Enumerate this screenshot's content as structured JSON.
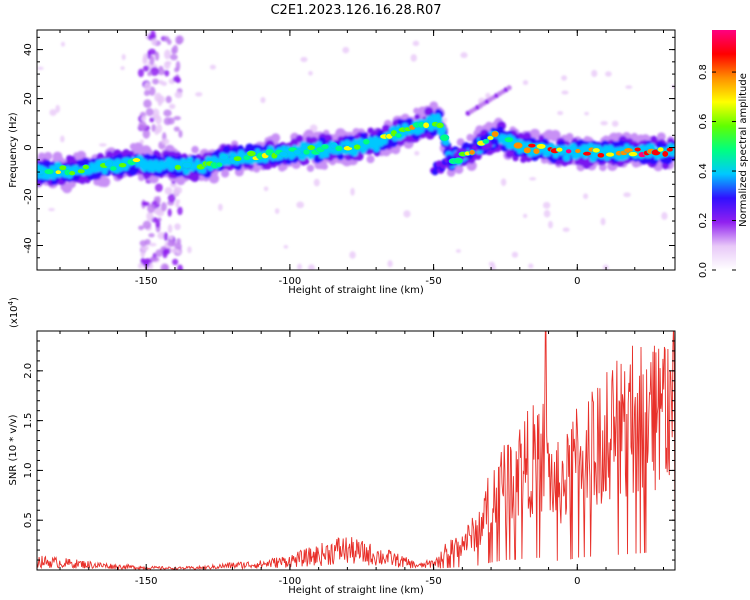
{
  "title": "C2E1.2023.126.16.28.R07",
  "chart_data": [
    {
      "type": "heatmap",
      "xlabel": "Height of straight line (km)",
      "ylabel": "Frequency (Hz)",
      "xlim": [
        -188,
        34
      ],
      "ylim": [
        -50,
        48
      ],
      "xticks": [
        -150,
        -100,
        -50,
        0
      ],
      "xtick_labels": [
        "-150",
        "-100",
        "-50",
        "0"
      ],
      "yticks": [
        -40,
        -20,
        0,
        20,
        40
      ],
      "ytick_labels": [
        "-40",
        "-20",
        "0",
        "20",
        "40"
      ],
      "colorbar": {
        "label": "Normalized spectral amplitude",
        "range": [
          0,
          0.97
        ],
        "ticks": [
          0.0,
          0.2,
          0.4,
          0.6,
          0.8
        ],
        "tick_labels": [
          "0.0",
          "0.2",
          "0.4",
          "0.6",
          "0.8"
        ],
        "colors": [
          "#ffffff",
          "#e8c8f8",
          "#9020f0",
          "#3010ff",
          "#00c8ff",
          "#00ff80",
          "#60ff00",
          "#ffff00",
          "#ff9000",
          "#ff0000",
          "#ff0080"
        ]
      },
      "ridge": [
        {
          "x": -188,
          "y": -10
        },
        {
          "x": -170,
          "y": -9
        },
        {
          "x": -155,
          "y": -6
        },
        {
          "x": -150,
          "y": -7
        },
        {
          "x": -140,
          "y": -7
        },
        {
          "x": -130,
          "y": -8
        },
        {
          "x": -120,
          "y": -4
        },
        {
          "x": -100,
          "y": -2
        },
        {
          "x": -80,
          "y": 0
        },
        {
          "x": -70,
          "y": 2
        },
        {
          "x": -60,
          "y": 7
        },
        {
          "x": -48,
          "y": 11
        },
        {
          "x": -44,
          "y": -6
        },
        {
          "x": -35,
          "y": 0
        },
        {
          "x": -28,
          "y": 5
        },
        {
          "x": -20,
          "y": 0
        },
        {
          "x": 0,
          "y": -2
        },
        {
          "x": 33,
          "y": -2
        }
      ],
      "grid": false
    },
    {
      "type": "line",
      "xlabel": "Height of straight line (km)",
      "ylabel": "SNR (10 * v/v)",
      "multiplier_label": "(x10",
      "multiplier_exp": "4",
      "multiplier_close": ")",
      "xlim": [
        -188,
        34
      ],
      "ylim": [
        0,
        24000
      ],
      "xticks": [
        -150,
        -100,
        -50,
        0
      ],
      "xtick_labels": [
        "-150",
        "-100",
        "-50",
        "0"
      ],
      "yticks": [
        5000,
        10000,
        15000,
        20000
      ],
      "ytick_labels": [
        "0.5",
        "1.0",
        "1.5",
        "2.0"
      ],
      "color": "#e8302a",
      "envelope": [
        {
          "x": -188,
          "y": 1500
        },
        {
          "x": -175,
          "y": 1100
        },
        {
          "x": -160,
          "y": 600
        },
        {
          "x": -150,
          "y": 400
        },
        {
          "x": -140,
          "y": 300
        },
        {
          "x": -130,
          "y": 400
        },
        {
          "x": -120,
          "y": 800
        },
        {
          "x": -110,
          "y": 1000
        },
        {
          "x": -100,
          "y": 1600
        },
        {
          "x": -90,
          "y": 2600
        },
        {
          "x": -82,
          "y": 3600
        },
        {
          "x": -75,
          "y": 3000
        },
        {
          "x": -65,
          "y": 2000
        },
        {
          "x": -55,
          "y": 700
        },
        {
          "x": -50,
          "y": 1200
        },
        {
          "x": -45,
          "y": 2200
        },
        {
          "x": -40,
          "y": 2900
        },
        {
          "x": -35,
          "y": 4200
        },
        {
          "x": -30,
          "y": 7500
        },
        {
          "x": -25,
          "y": 10000
        },
        {
          "x": -20,
          "y": 11000
        },
        {
          "x": -15,
          "y": 12000
        },
        {
          "x": -12,
          "y": 12500
        },
        {
          "x": -8,
          "y": 9000
        },
        {
          "x": -3,
          "y": 10000
        },
        {
          "x": 0,
          "y": 12500
        },
        {
          "x": 5,
          "y": 13500
        },
        {
          "x": 10,
          "y": 14500
        },
        {
          "x": 15,
          "y": 15500
        },
        {
          "x": 20,
          "y": 16500
        },
        {
          "x": 25,
          "y": 17500
        },
        {
          "x": 30,
          "y": 18000
        },
        {
          "x": 34,
          "y": 18500
        }
      ],
      "peak": {
        "x": -11,
        "y": 24000
      },
      "grid": false
    }
  ]
}
